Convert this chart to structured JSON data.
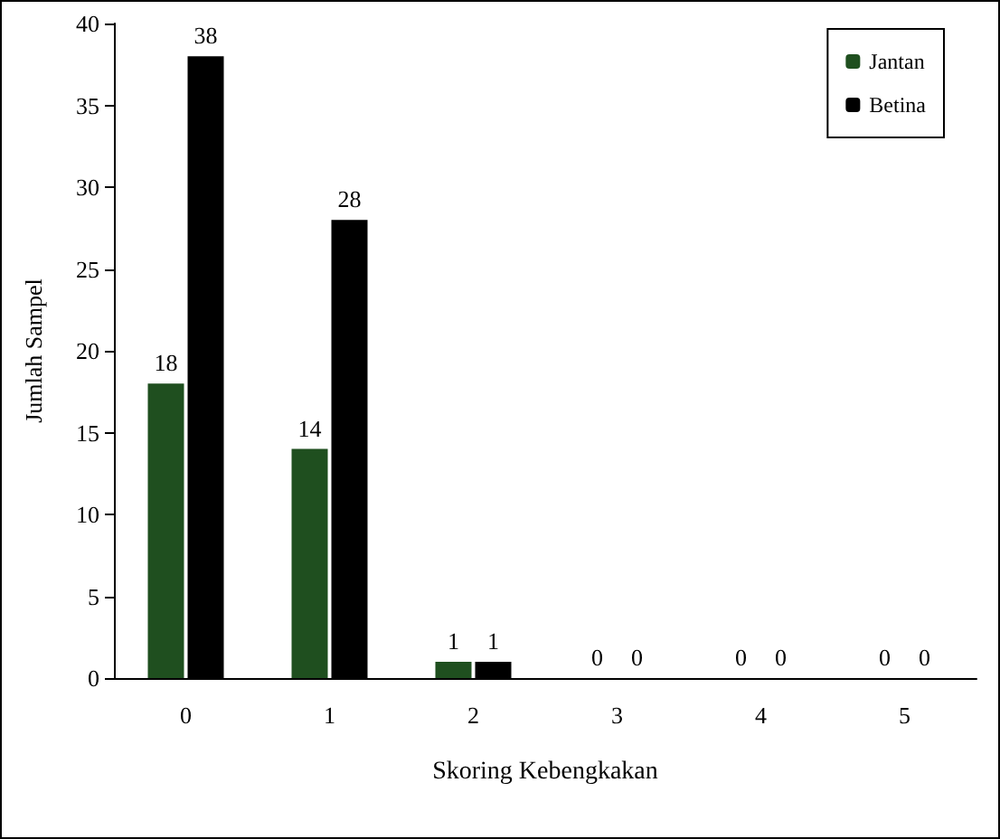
{
  "chart_data": {
    "type": "bar",
    "xlabel": "Skoring Kebengkakan",
    "ylabel": "Jumlah Sampel",
    "categories": [
      "0",
      "1",
      "2",
      "3",
      "4",
      "5"
    ],
    "series": [
      {
        "name": "Jantan",
        "color": "#1f4f1f",
        "values": [
          18,
          14,
          1,
          0,
          0,
          0
        ]
      },
      {
        "name": "Betina",
        "color": "#000000",
        "values": [
          38,
          28,
          1,
          0,
          0,
          0
        ]
      }
    ],
    "ylim": [
      0,
      40
    ],
    "yticks": [
      0,
      5,
      10,
      15,
      20,
      25,
      30,
      35,
      40
    ],
    "grid": false,
    "legend": "top right",
    "data_labels": true
  }
}
